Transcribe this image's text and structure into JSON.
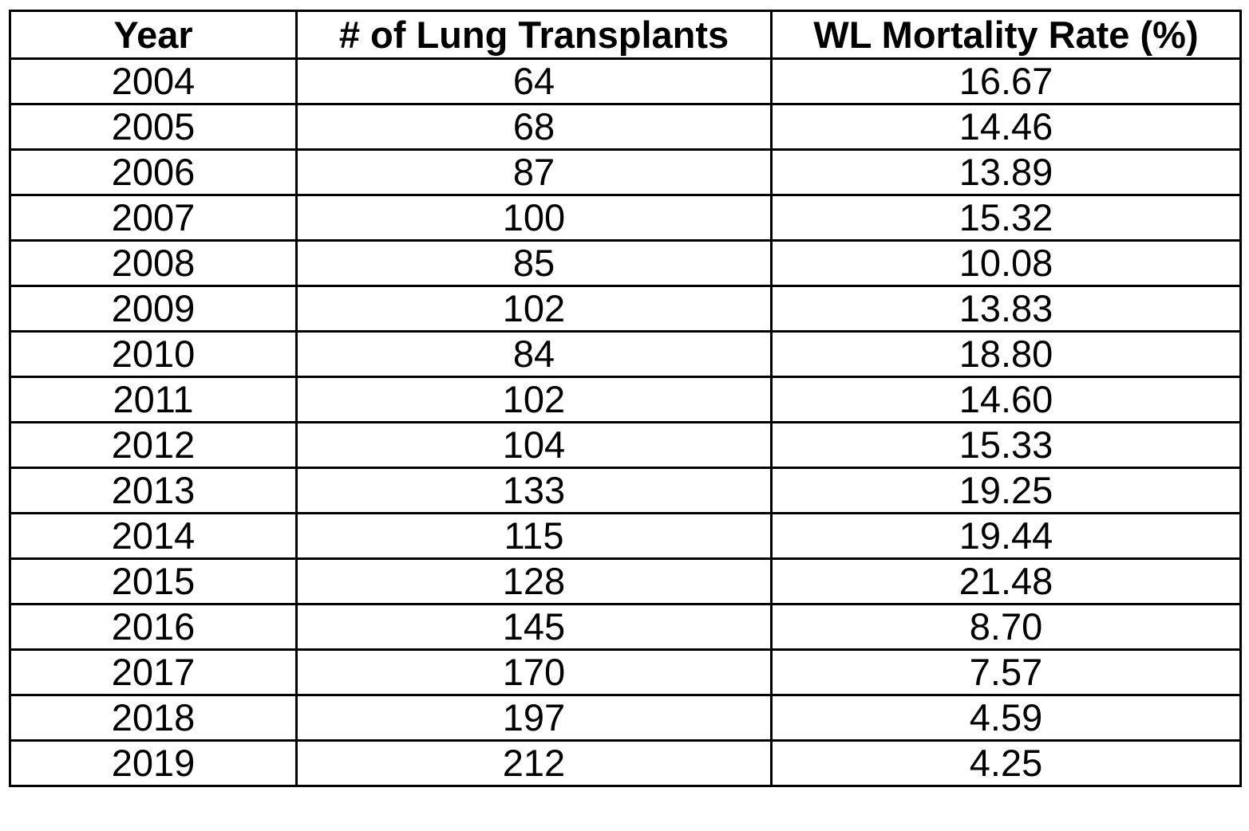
{
  "table": {
    "headers": [
      "Year",
      "# of Lung Transplants",
      "WL Mortality Rate (%)"
    ],
    "rows": [
      [
        "2004",
        "64",
        "16.67"
      ],
      [
        "2005",
        "68",
        "14.46"
      ],
      [
        "2006",
        "87",
        "13.89"
      ],
      [
        "2007",
        "100",
        "15.32"
      ],
      [
        "2008",
        "85",
        "10.08"
      ],
      [
        "2009",
        "102",
        "13.83"
      ],
      [
        "2010",
        "84",
        "18.80"
      ],
      [
        "2011",
        "102",
        "14.60"
      ],
      [
        "2012",
        "104",
        "15.33"
      ],
      [
        "2013",
        "133",
        "19.25"
      ],
      [
        "2014",
        "115",
        "19.44"
      ],
      [
        "2015",
        "128",
        "21.48"
      ],
      [
        "2016",
        "145",
        "8.70"
      ],
      [
        "2017",
        "170",
        "7.57"
      ],
      [
        "2018",
        "197",
        "4.59"
      ],
      [
        "2019",
        "212",
        "4.25"
      ]
    ]
  }
}
